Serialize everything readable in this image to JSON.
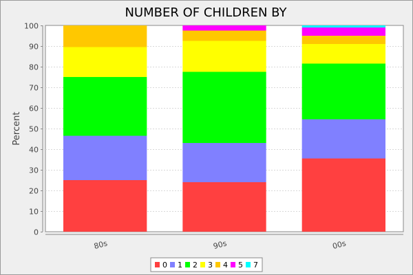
{
  "chart_data": {
    "type": "bar",
    "stacked": true,
    "title": "NUMBER OF CHILDREN BY",
    "xlabel": "",
    "ylabel": "Percent",
    "ylim": [
      0,
      100
    ],
    "yticks": [
      0,
      10,
      20,
      30,
      40,
      50,
      60,
      70,
      80,
      90,
      100
    ],
    "grid": true,
    "legend": "bottom",
    "categories": [
      "80s",
      "90s",
      "00s"
    ],
    "series": [
      {
        "name": "0",
        "color": "#ff4040",
        "values": [
          25,
          24,
          35.5
        ]
      },
      {
        "name": "1",
        "color": "#8080ff",
        "values": [
          21.5,
          19,
          19
        ]
      },
      {
        "name": "2",
        "color": "#00ff00",
        "values": [
          28.5,
          34.5,
          27
        ]
      },
      {
        "name": "3",
        "color": "#ffff00",
        "values": [
          14.5,
          15,
          9.5
        ]
      },
      {
        "name": "4",
        "color": "#ffc800",
        "values": [
          10.5,
          5,
          4
        ]
      },
      {
        "name": "5",
        "color": "#ff00ff",
        "values": [
          0,
          2.5,
          4
        ]
      },
      {
        "name": "7",
        "color": "#00ffff",
        "values": [
          0,
          0,
          1
        ]
      }
    ]
  }
}
